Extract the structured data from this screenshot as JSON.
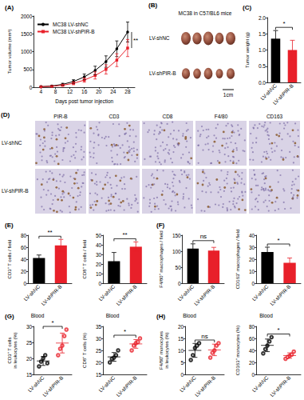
{
  "chart_data": [
    {
      "type": "line",
      "title": "(A)",
      "x_label": "Days post tumor injection",
      "y_label": "Tumor volume (mm³)",
      "x": [
        4,
        7,
        10,
        13,
        16,
        19,
        22,
        25,
        28
      ],
      "series": [
        {
          "name": "MC38 LV-shNC",
          "color": "#000000",
          "marker": "circle",
          "values": [
            15,
            35,
            80,
            160,
            290,
            470,
            720,
            1080,
            1550
          ],
          "errors": [
            5,
            12,
            30,
            50,
            80,
            120,
            160,
            220,
            280
          ]
        },
        {
          "name": "MC38 LV-shPIR-B",
          "color": "#e8202a",
          "marker": "square",
          "values": [
            12,
            25,
            55,
            110,
            200,
            330,
            500,
            760,
            1100
          ],
          "errors": [
            4,
            10,
            25,
            40,
            60,
            100,
            130,
            180,
            240
          ]
        }
      ],
      "xlim": [
        2,
        30
      ],
      "xticks": [
        4,
        8,
        12,
        16,
        20,
        24,
        28
      ],
      "ylim": [
        0,
        2000
      ],
      "yticks": [
        0,
        500,
        1000,
        1500,
        2000
      ],
      "legend": "upper left",
      "annotations": [
        "**"
      ]
    },
    {
      "type": "bar",
      "title": "(C)",
      "y_label": "Tumor weight (g)",
      "categories": [
        "LV-shNC",
        "LV-shPIR-B"
      ],
      "values": [
        1.35,
        1
      ],
      "errors": [
        0.25,
        0.3
      ],
      "colors": [
        "#000000",
        "#e8202a"
      ],
      "ylim": [
        0,
        2
      ],
      "yticks": [
        {
          "value": 0,
          "label": "0.0"
        },
        0.5,
        {
          "value": 1,
          "label": "1.0"
        },
        1.5,
        {
          "value": 2,
          "label": "2.0"
        }
      ],
      "annotations": [
        "*"
      ]
    },
    {
      "type": "bar",
      "title": "(E)",
      "y_label": "CD3⁺ T cells / field",
      "categories": [
        "LV-shNC",
        "LV-shPIR-B"
      ],
      "values": [
        42,
        63
      ],
      "errors": [
        5,
        10
      ],
      "colors": [
        "#000000",
        "#e8202a"
      ],
      "ylim": [
        0,
        80
      ],
      "yticks": [
        0,
        20,
        40,
        60,
        80
      ],
      "annotations": [
        "**"
      ]
    },
    {
      "type": "bar",
      "y_label": "CD8⁺ T cells / field",
      "categories": [
        "LV-shNC",
        "LV-shPIR-B"
      ],
      "values": [
        23,
        38
      ],
      "errors": [
        9,
        5
      ],
      "colors": [
        "#000000",
        "#e8202a"
      ],
      "ylim": [
        0,
        50
      ],
      "yticks": [
        0,
        10,
        20,
        30,
        40,
        50
      ],
      "annotations": [
        "**"
      ]
    },
    {
      "type": "bar",
      "title": "(F)",
      "y_label": "F4/80⁺ macrophages / field",
      "categories": [
        "LV-shNC",
        "LV-shPIR-B"
      ],
      "values": [
        108,
        102
      ],
      "errors": [
        15,
        10
      ],
      "colors": [
        "#000000",
        "#e8202a"
      ],
      "ylim": [
        0,
        150
      ],
      "yticks": [
        0,
        50,
        100,
        150
      ],
      "annotations": [
        "ns"
      ]
    },
    {
      "type": "bar",
      "y_label": "CD163⁺ macrophages / field",
      "categories": [
        "LV-shNC",
        "LV-shPIR-B"
      ],
      "values": [
        26,
        17
      ],
      "errors": [
        4,
        4
      ],
      "colors": [
        "#000000",
        "#e8202a"
      ],
      "ylim": [
        0,
        40
      ],
      "yticks": [
        0,
        10,
        20,
        30,
        40
      ],
      "annotations": [
        "*"
      ]
    },
    {
      "type": "scatter",
      "title": "(G)",
      "subtitle": "Blood",
      "y_label": "CD3⁺ T cells\nin leukocytes (%)",
      "categories": [
        "LV-shNC",
        "LV-shPIR-B"
      ],
      "points": [
        [
          17.5,
          19,
          20,
          21,
          18.5
        ],
        [
          21,
          23,
          24,
          27,
          29
        ]
      ],
      "means": [
        19.2,
        24.8
      ],
      "errors": [
        1.4,
        3.1
      ],
      "colors": [
        "#000000",
        "#e8202a"
      ],
      "marker": "circle",
      "ylim": [
        15,
        30
      ],
      "yticks": [
        15,
        20,
        25,
        30
      ],
      "annotations": [
        "*"
      ]
    },
    {
      "type": "scatter",
      "subtitle": "Blood",
      "y_label": "CD8⁺ T cells (%)",
      "categories": [
        "LV-shNC",
        "LV-shPIR-B"
      ],
      "points": [
        [
          20,
          21.5,
          22,
          23,
          25
        ],
        [
          25,
          27,
          28,
          28.5,
          30
        ]
      ],
      "means": [
        22.3,
        27.7
      ],
      "errors": [
        1.8,
        1.8
      ],
      "colors": [
        "#000000",
        "#e8202a"
      ],
      "marker": "circle",
      "ylim": [
        15,
        35
      ],
      "yticks": [
        15,
        20,
        25,
        30,
        35
      ],
      "annotations": [
        "*"
      ]
    },
    {
      "type": "scatter",
      "title": "(H)",
      "subtitle": "Blood",
      "y_label": "F4/80⁺ monocytes\nin leukocytes (%)",
      "categories": [
        "LV-shNC",
        "LV-shPIR-B"
      ],
      "points": [
        [
          6,
          8,
          11,
          12,
          13
        ],
        [
          7,
          9,
          10,
          12,
          13
        ]
      ],
      "means": [
        10,
        10.2
      ],
      "errors": [
        2.9,
        2.4
      ],
      "colors": [
        "#000000",
        "#e8202a"
      ],
      "marker": "circle",
      "ylim": [
        0,
        20
      ],
      "yticks": [
        0,
        5,
        10,
        15,
        20
      ],
      "annotations": [
        "ns"
      ]
    },
    {
      "type": "scatter",
      "subtitle": "Blood",
      "y_label": "CD163⁺ monocytes (%)",
      "categories": [
        "LV-shNC",
        "LV-shPIR-B"
      ],
      "points": [
        [
          35,
          42,
          48,
          55,
          62
        ],
        [
          26,
          29,
          31,
          33,
          38
        ]
      ],
      "means": [
        48.4,
        31.4
      ],
      "errors": [
        10.5,
        4.5
      ],
      "colors": [
        "#000000",
        "#e8202a"
      ],
      "marker": "circle",
      "ylim": [
        0,
        80
      ],
      "yticks": [
        0,
        20,
        40,
        60,
        80
      ],
      "annotations": [
        "*"
      ]
    }
  ],
  "photo_panel": {
    "label": "(B)",
    "title": "MC38 in C57/BL6 mice",
    "rows": [
      "LV-shNC",
      "LV-shPIR-B"
    ],
    "scale_bar": "1cm"
  },
  "ihc_panel": {
    "label": "(D)",
    "columns": [
      "PIR-B",
      "CD3",
      "CD8",
      "F4/80",
      "CD163"
    ],
    "rows": [
      "LV-shNC",
      "LV-shPIR-B"
    ]
  }
}
